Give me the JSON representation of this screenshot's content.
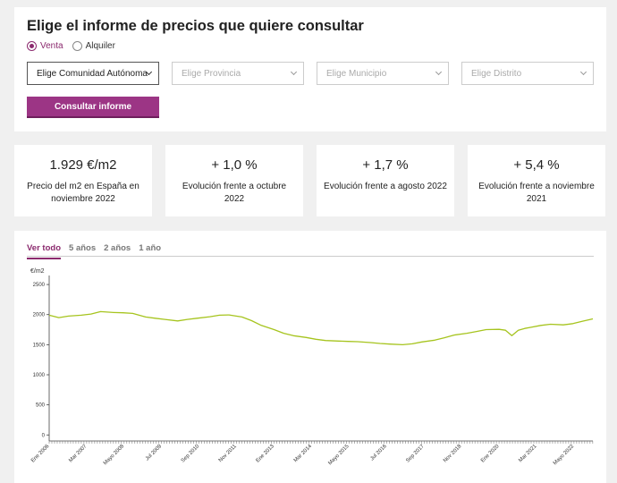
{
  "filter": {
    "title": "Elige el informe de precios que quiere consultar",
    "radios": [
      {
        "label": "Venta",
        "checked": true
      },
      {
        "label": "Alquiler",
        "checked": false
      }
    ],
    "selects": [
      {
        "label": "Elige Comunidad Autónoma"
      },
      {
        "label": "Elige Provincia"
      },
      {
        "label": "Elige Municipio"
      },
      {
        "label": "Elige Distrito"
      }
    ],
    "button_label": "Consultar informe"
  },
  "stats": [
    {
      "value": "1.929 €/m2",
      "desc": "Precio del m2 en España en noviembre 2022"
    },
    {
      "value": "+ 1,0 %",
      "desc": "Evolución frente a octubre 2022"
    },
    {
      "value": "+ 1,7 %",
      "desc": "Evolución frente a agosto 2022"
    },
    {
      "value": "+ 5,4 %",
      "desc": "Evolución frente a noviembre 2021"
    }
  ],
  "tabs": [
    {
      "label": "Ver todo",
      "active": true
    },
    {
      "label": "5 años",
      "active": false
    },
    {
      "label": "2 años",
      "active": false
    },
    {
      "label": "1 año",
      "active": false
    }
  ],
  "colors": {
    "accent": "#8b2a6e",
    "button": "#9c3585",
    "line": "#a6c41e"
  },
  "chart_data": {
    "type": "line",
    "ylabel": "€/m2",
    "ylim": [
      -100,
      2650
    ],
    "yticks": [
      0,
      500,
      1000,
      1500,
      2000,
      2500
    ],
    "xlim": [
      2006.0,
      2022.92
    ],
    "xtick_labels": [
      "Ene 2006",
      "Mar 2007",
      "Mayo 2008",
      "Jul 2009",
      "Sep 2010",
      "Nov 2011",
      "Ene 2013",
      "Mar 2014",
      "Mayo 2015",
      "Jul 2016",
      "Sep 2017",
      "Nov 2018",
      "Ene 2020",
      "Mar 2021",
      "Mayo 2022"
    ],
    "xtick_positions": [
      2006.0,
      2007.17,
      2008.33,
      2009.5,
      2010.67,
      2011.83,
      2013.0,
      2014.17,
      2015.33,
      2016.5,
      2017.67,
      2018.83,
      2020.0,
      2021.17,
      2022.33
    ],
    "series": [
      {
        "x": [
          2006.0,
          2006.3,
          2006.6,
          2007.0,
          2007.3,
          2007.6,
          2008.0,
          2008.3,
          2008.6,
          2009.0,
          2009.3,
          2009.6,
          2010.0,
          2010.3,
          2010.6,
          2011.0,
          2011.3,
          2011.6,
          2012.0,
          2012.3,
          2012.6,
          2013.0,
          2013.3,
          2013.6,
          2014.0,
          2014.3,
          2014.6,
          2015.0,
          2015.3,
          2015.6,
          2016.0,
          2016.3,
          2016.6,
          2017.0,
          2017.3,
          2017.6,
          2018.0,
          2018.3,
          2018.6,
          2019.0,
          2019.3,
          2019.6,
          2020.0,
          2020.2,
          2020.4,
          2020.6,
          2020.8,
          2021.0,
          2021.3,
          2021.6,
          2022.0,
          2022.3,
          2022.6,
          2022.92
        ],
        "y": [
          1990,
          1950,
          1975,
          1990,
          2010,
          2050,
          2035,
          2030,
          2020,
          1960,
          1940,
          1920,
          1895,
          1920,
          1940,
          1965,
          1990,
          1995,
          1960,
          1900,
          1820,
          1750,
          1690,
          1650,
          1620,
          1590,
          1570,
          1560,
          1555,
          1550,
          1535,
          1520,
          1510,
          1500,
          1515,
          1545,
          1575,
          1615,
          1660,
          1690,
          1720,
          1750,
          1755,
          1740,
          1650,
          1740,
          1770,
          1790,
          1820,
          1840,
          1830,
          1850,
          1890,
          1929
        ]
      }
    ]
  }
}
